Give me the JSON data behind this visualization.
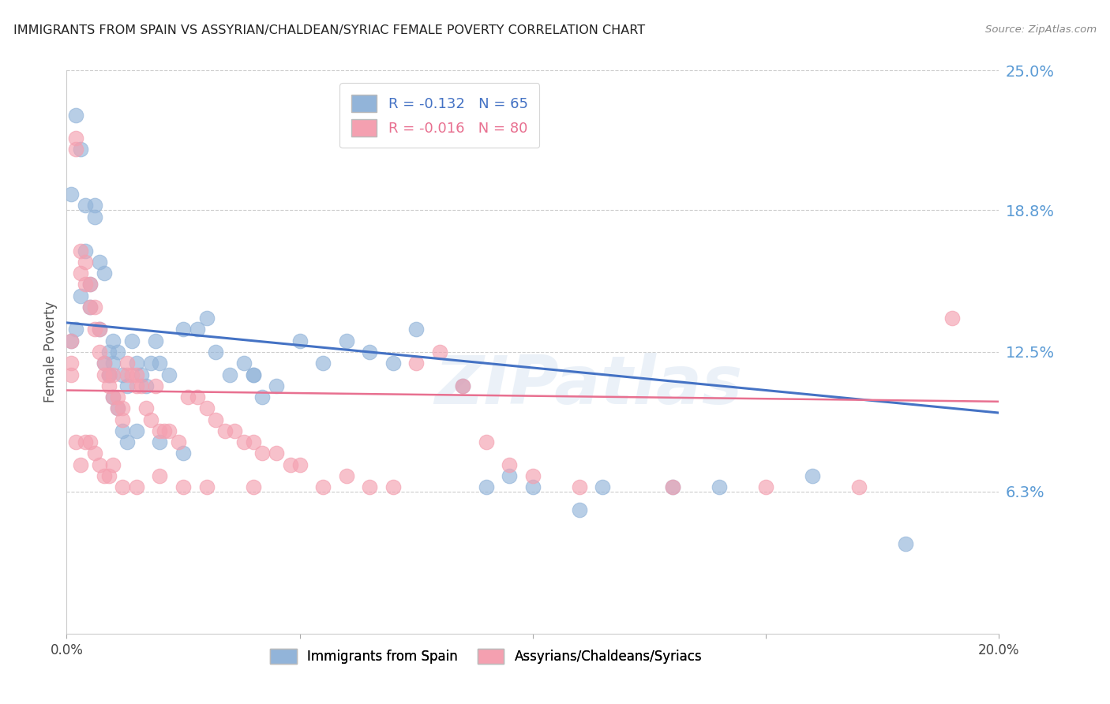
{
  "title": "IMMIGRANTS FROM SPAIN VS ASSYRIAN/CHALDEAN/SYRIAC FEMALE POVERTY CORRELATION CHART",
  "source": "Source: ZipAtlas.com",
  "ylabel": "Female Poverty",
  "xlim": [
    0.0,
    0.2
  ],
  "ylim": [
    0.0,
    0.25
  ],
  "ytick_positions": [
    0.0,
    0.063,
    0.125,
    0.188,
    0.25
  ],
  "ytick_labels": [
    "",
    "6.3%",
    "12.5%",
    "18.8%",
    "25.0%"
  ],
  "xtick_positions": [
    0.0,
    0.05,
    0.1,
    0.15,
    0.2
  ],
  "xtick_labels": [
    "0.0%",
    "",
    "",
    "",
    "20.0%"
  ],
  "blue_R": "-0.132",
  "blue_N": "65",
  "pink_R": "-0.016",
  "pink_N": "80",
  "legend_label_blue": "Immigrants from Spain",
  "legend_label_pink": "Assyrians/Chaldeans/Syriacs",
  "blue_color": "#92B4D9",
  "pink_color": "#F4A0B0",
  "blue_line_color": "#4472C4",
  "pink_line_color": "#E87090",
  "background_color": "#FFFFFF",
  "grid_color": "#CCCCCC",
  "title_color": "#222222",
  "ytick_color": "#5B9BD5",
  "watermark_text": "ZIPatlas",
  "blue_line_y0": 0.138,
  "blue_line_y1": 0.098,
  "pink_line_y0": 0.108,
  "pink_line_y1": 0.103,
  "blue_x": [
    0.001,
    0.001,
    0.002,
    0.003,
    0.003,
    0.004,
    0.005,
    0.005,
    0.006,
    0.007,
    0.007,
    0.008,
    0.009,
    0.009,
    0.01,
    0.01,
    0.011,
    0.012,
    0.013,
    0.014,
    0.015,
    0.016,
    0.017,
    0.018,
    0.019,
    0.02,
    0.022,
    0.025,
    0.028,
    0.03,
    0.032,
    0.035,
    0.038,
    0.04,
    0.042,
    0.045,
    0.05,
    0.055,
    0.06,
    0.065,
    0.07,
    0.075,
    0.085,
    0.09,
    0.095,
    0.1,
    0.11,
    0.115,
    0.13,
    0.14,
    0.16,
    0.18,
    0.002,
    0.004,
    0.006,
    0.008,
    0.009,
    0.01,
    0.011,
    0.012,
    0.013,
    0.015,
    0.02,
    0.025,
    0.04
  ],
  "blue_y": [
    0.195,
    0.13,
    0.135,
    0.215,
    0.15,
    0.17,
    0.155,
    0.145,
    0.19,
    0.165,
    0.135,
    0.12,
    0.125,
    0.115,
    0.13,
    0.12,
    0.125,
    0.115,
    0.11,
    0.13,
    0.12,
    0.115,
    0.11,
    0.12,
    0.13,
    0.12,
    0.115,
    0.135,
    0.135,
    0.14,
    0.125,
    0.115,
    0.12,
    0.115,
    0.105,
    0.11,
    0.13,
    0.12,
    0.13,
    0.125,
    0.12,
    0.135,
    0.11,
    0.065,
    0.07,
    0.065,
    0.055,
    0.065,
    0.065,
    0.065,
    0.07,
    0.04,
    0.23,
    0.19,
    0.185,
    0.16,
    0.115,
    0.105,
    0.1,
    0.09,
    0.085,
    0.09,
    0.085,
    0.08,
    0.115
  ],
  "pink_x": [
    0.001,
    0.001,
    0.001,
    0.002,
    0.002,
    0.003,
    0.003,
    0.004,
    0.004,
    0.005,
    0.005,
    0.006,
    0.006,
    0.007,
    0.007,
    0.008,
    0.008,
    0.009,
    0.009,
    0.01,
    0.01,
    0.011,
    0.011,
    0.012,
    0.012,
    0.013,
    0.013,
    0.014,
    0.015,
    0.015,
    0.016,
    0.017,
    0.018,
    0.019,
    0.02,
    0.021,
    0.022,
    0.024,
    0.026,
    0.028,
    0.03,
    0.032,
    0.034,
    0.036,
    0.038,
    0.04,
    0.042,
    0.045,
    0.048,
    0.05,
    0.055,
    0.06,
    0.065,
    0.07,
    0.075,
    0.08,
    0.085,
    0.09,
    0.095,
    0.1,
    0.11,
    0.13,
    0.15,
    0.17,
    0.19,
    0.002,
    0.003,
    0.004,
    0.005,
    0.006,
    0.007,
    0.008,
    0.009,
    0.01,
    0.012,
    0.015,
    0.02,
    0.025,
    0.03,
    0.04
  ],
  "pink_y": [
    0.13,
    0.12,
    0.115,
    0.22,
    0.215,
    0.17,
    0.16,
    0.165,
    0.155,
    0.155,
    0.145,
    0.145,
    0.135,
    0.135,
    0.125,
    0.12,
    0.115,
    0.115,
    0.11,
    0.115,
    0.105,
    0.105,
    0.1,
    0.1,
    0.095,
    0.12,
    0.115,
    0.115,
    0.115,
    0.11,
    0.11,
    0.1,
    0.095,
    0.11,
    0.09,
    0.09,
    0.09,
    0.085,
    0.105,
    0.105,
    0.1,
    0.095,
    0.09,
    0.09,
    0.085,
    0.085,
    0.08,
    0.08,
    0.075,
    0.075,
    0.065,
    0.07,
    0.065,
    0.065,
    0.12,
    0.125,
    0.11,
    0.085,
    0.075,
    0.07,
    0.065,
    0.065,
    0.065,
    0.065,
    0.14,
    0.085,
    0.075,
    0.085,
    0.085,
    0.08,
    0.075,
    0.07,
    0.07,
    0.075,
    0.065,
    0.065,
    0.07,
    0.065,
    0.065,
    0.065
  ]
}
